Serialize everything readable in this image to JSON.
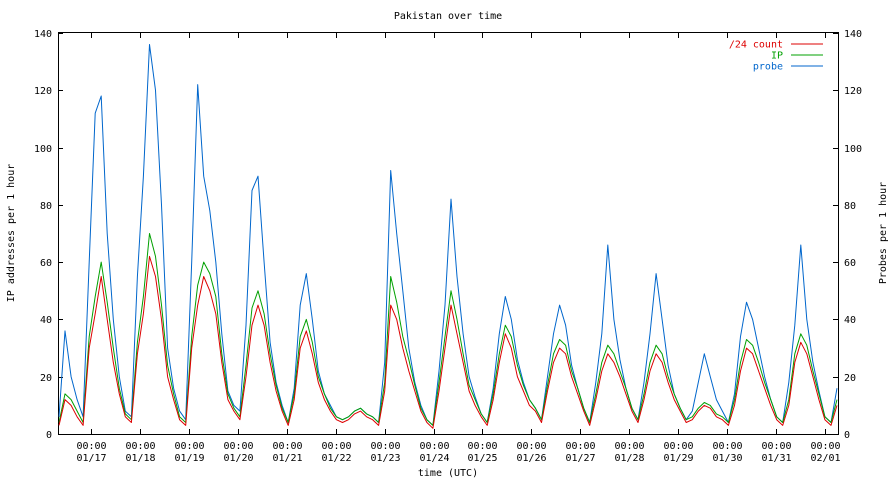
{
  "chart_data": {
    "type": "line",
    "title": "Pakistan over time",
    "xlabel": "time (UTC)",
    "ylabel_left": "IP addresses per 1 hour",
    "ylabel_right": "Probes per 1 hour",
    "ylim": [
      0,
      140
    ],
    "y_ticks": [
      0,
      20,
      40,
      60,
      80,
      100,
      120,
      140
    ],
    "grid": false,
    "legend_position": "top-right",
    "x_ticks": [
      {
        "time": "00:00",
        "date": "01/17"
      },
      {
        "time": "00:00",
        "date": "01/18"
      },
      {
        "time": "00:00",
        "date": "01/19"
      },
      {
        "time": "00:00",
        "date": "01/20"
      },
      {
        "time": "00:00",
        "date": "01/21"
      },
      {
        "time": "00:00",
        "date": "01/22"
      },
      {
        "time": "00:00",
        "date": "01/23"
      },
      {
        "time": "00:00",
        "date": "01/24"
      },
      {
        "time": "00:00",
        "date": "01/25"
      },
      {
        "time": "00:00",
        "date": "01/26"
      },
      {
        "time": "00:00",
        "date": "01/27"
      },
      {
        "time": "00:00",
        "date": "01/28"
      },
      {
        "time": "00:00",
        "date": "01/29"
      },
      {
        "time": "00:00",
        "date": "01/30"
      },
      {
        "time": "00:00",
        "date": "01/31"
      },
      {
        "time": "00:00",
        "date": "02/01"
      }
    ],
    "series": [
      {
        "name": "/24 count",
        "color": "#dd0000",
        "values": [
          3,
          12,
          10,
          6,
          3,
          30,
          42,
          55,
          40,
          25,
          14,
          6,
          4,
          28,
          42,
          62,
          55,
          40,
          20,
          12,
          5,
          3,
          30,
          45,
          55,
          50,
          42,
          25,
          12,
          8,
          5,
          20,
          38,
          45,
          38,
          25,
          15,
          8,
          3,
          12,
          30,
          36,
          28,
          18,
          12,
          8,
          5,
          4,
          5,
          7,
          8,
          6,
          5,
          3,
          15,
          45,
          40,
          30,
          22,
          15,
          8,
          4,
          2,
          15,
          30,
          45,
          35,
          25,
          15,
          10,
          6,
          3,
          12,
          25,
          35,
          30,
          20,
          15,
          10,
          8,
          4,
          15,
          25,
          30,
          28,
          20,
          14,
          8,
          3,
          12,
          22,
          28,
          25,
          20,
          14,
          8,
          4,
          12,
          22,
          28,
          25,
          18,
          12,
          8,
          4,
          5,
          8,
          10,
          9,
          6,
          5,
          3,
          10,
          22,
          30,
          28,
          22,
          16,
          10,
          5,
          3,
          10,
          25,
          32,
          28,
          20,
          12,
          5,
          3,
          10
        ]
      },
      {
        "name": "IP",
        "color": "#00a000",
        "values": [
          4,
          14,
          12,
          8,
          4,
          34,
          48,
          60,
          46,
          30,
          16,
          7,
          5,
          32,
          48,
          70,
          62,
          45,
          24,
          14,
          6,
          4,
          34,
          52,
          60,
          56,
          48,
          28,
          14,
          9,
          6,
          24,
          44,
          50,
          42,
          28,
          17,
          9,
          4,
          14,
          34,
          40,
          32,
          20,
          14,
          9,
          6,
          5,
          6,
          8,
          9,
          7,
          6,
          4,
          18,
          55,
          46,
          34,
          26,
          17,
          9,
          5,
          3,
          18,
          34,
          50,
          40,
          28,
          17,
          12,
          7,
          4,
          14,
          28,
          38,
          34,
          24,
          17,
          12,
          9,
          5,
          17,
          28,
          33,
          31,
          22,
          16,
          9,
          4,
          14,
          25,
          31,
          28,
          22,
          16,
          9,
          5,
          14,
          25,
          31,
          28,
          20,
          14,
          9,
          5,
          6,
          9,
          11,
          10,
          7,
          6,
          4,
          12,
          25,
          33,
          31,
          25,
          18,
          12,
          6,
          4,
          12,
          28,
          35,
          31,
          22,
          14,
          6,
          4,
          12
        ]
      },
      {
        "name": "probe",
        "color": "#0066cc",
        "values": [
          6,
          36,
          20,
          12,
          6,
          60,
          112,
          118,
          70,
          40,
          20,
          8,
          6,
          55,
          90,
          136,
          120,
          80,
          30,
          16,
          8,
          5,
          60,
          122,
          90,
          78,
          60,
          35,
          15,
          10,
          8,
          38,
          85,
          90,
          60,
          32,
          18,
          10,
          4,
          16,
          45,
          56,
          40,
          22,
          14,
          10,
          6,
          5,
          6,
          8,
          9,
          7,
          6,
          4,
          25,
          92,
          70,
          50,
          30,
          18,
          10,
          5,
          3,
          22,
          45,
          82,
          55,
          35,
          20,
          13,
          7,
          4,
          16,
          35,
          48,
          40,
          26,
          18,
          12,
          9,
          5,
          20,
          35,
          45,
          38,
          24,
          16,
          9,
          4,
          18,
          35,
          66,
          40,
          26,
          16,
          9,
          5,
          18,
          35,
          56,
          40,
          24,
          14,
          9,
          5,
          8,
          18,
          28,
          20,
          12,
          8,
          4,
          14,
          34,
          46,
          40,
          30,
          20,
          12,
          6,
          4,
          18,
          38,
          66,
          40,
          25,
          15,
          6,
          4,
          16
        ]
      }
    ]
  }
}
